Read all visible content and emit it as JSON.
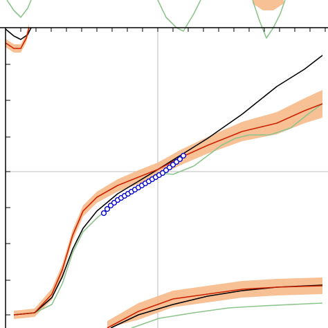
{
  "chart_data": {
    "type": "line",
    "xlim": [
      0,
      474
    ],
    "ylim": [
      0,
      474
    ],
    "xticks": [
      30,
      52,
      74,
      96,
      118,
      140,
      162,
      184,
      206,
      228,
      250,
      272,
      294,
      316,
      338,
      360,
      382,
      404,
      426,
      448,
      470
    ],
    "yticks": [
      19,
      69,
      122,
      174,
      226,
      276,
      329,
      381
    ],
    "grid_x": [
      228
    ],
    "grid_y": [
      226
    ],
    "series": [
      {
        "kind": "band",
        "color": "#f6b98a",
        "x": [
          20,
          50,
          75,
          90,
          105,
          120,
          140,
          170,
          200,
          228,
          260,
          300,
          350,
          400,
          440,
          466
        ],
        "lower": [
          13,
          16,
          41,
          76,
          126,
          161,
          181,
          197,
          208,
          219,
          235,
          252,
          270,
          280,
          296,
          304
        ],
        "upper": [
          25,
          28,
          57,
          92,
          142,
          177,
          197,
          215,
          228,
          239,
          257,
          276,
          298,
          312,
          332,
          344
        ]
      },
      {
        "kind": "band",
        "color": "#f6b98a",
        "x": [
          8,
          20,
          30,
          38,
          42
        ],
        "lower": [
          406,
          398,
          398,
          413,
          428
        ],
        "upper": [
          418,
          410,
          410,
          425,
          440
        ]
      },
      {
        "kind": "band",
        "color": "#f6b98a",
        "x": [
          155,
          200,
          250,
          300,
          350,
          400,
          466
        ],
        "lower": [
          0,
          12,
          30,
          37,
          44,
          47,
          49
        ],
        "upper": [
          10,
          36,
          54,
          61,
          68,
          71,
          73
        ]
      },
      {
        "kind": "band",
        "color": "#f6b98a",
        "x": [
          365,
          380,
          395,
          410
        ],
        "lower": [
          469,
          459,
          459,
          469
        ],
        "upper": [
          474,
          474,
          474,
          474
        ]
      },
      {
        "kind": "line",
        "color": "#8cc48c",
        "x": [
          20,
          50,
          75,
          90,
          105,
          120,
          140,
          170,
          200,
          228,
          250,
          280,
          320,
          340,
          360,
          390,
          420,
          445,
          466
        ],
        "values": [
          19,
          22,
          34,
          64,
          109,
          139,
          159,
          184,
          204,
          224,
          222,
          234,
          264,
          274,
          279,
          279,
          289,
          309,
          324
        ]
      },
      {
        "kind": "line",
        "color": "#8cc48c",
        "x": [
          190,
          230,
          280,
          330,
          380,
          466
        ],
        "values": [
          0,
          14,
          22,
          29,
          32,
          36
        ]
      },
      {
        "kind": "line",
        "color": "#8cc48c",
        "x": [
          10,
          20,
          30,
          40,
          45
        ],
        "values": [
          474,
          459,
          449,
          462,
          474
        ]
      },
      {
        "kind": "line",
        "color": "#8cc48c",
        "x": [
          228,
          240,
          255,
          265,
          280,
          290
        ],
        "values": [
          474,
          449,
          434,
          429,
          454,
          474
        ]
      },
      {
        "kind": "line",
        "color": "#8cc48c",
        "x": [
          365,
          375,
          385,
          395,
          405,
          412
        ],
        "values": [
          474,
          444,
          419,
          434,
          454,
          474
        ]
      },
      {
        "kind": "line",
        "color": "#000000",
        "x": [
          20,
          50,
          75,
          90,
          105,
          120,
          140,
          170,
          200,
          228,
          260,
          300,
          350,
          400,
          440,
          466
        ],
        "values": [
          19,
          22,
          44,
          74,
          114,
          144,
          169,
          194,
          212,
          229,
          249,
          274,
          309,
          349,
          374,
          394
        ]
      },
      {
        "kind": "line",
        "color": "#000000",
        "x": [
          8,
          20,
          30,
          40,
          45
        ],
        "values": [
          432,
          422,
          417,
          424,
          434
        ]
      },
      {
        "kind": "line",
        "color": "#000000",
        "x": [
          160,
          200,
          250,
          300,
          350,
          400,
          466
        ],
        "values": [
          0,
          19,
          34,
          46,
          54,
          59,
          62
        ]
      },
      {
        "kind": "line",
        "color": "#cc2200",
        "x": [
          20,
          50,
          75,
          90,
          105,
          120,
          140,
          170,
          200,
          228,
          260,
          300,
          350,
          400,
          440,
          466
        ],
        "values": [
          19,
          22,
          49,
          84,
          134,
          169,
          189,
          206,
          218,
          229,
          246,
          264,
          284,
          296,
          314,
          324
        ]
      },
      {
        "kind": "line",
        "color": "#cc2200",
        "x": [
          8,
          20,
          30,
          38,
          42
        ],
        "values": [
          412,
          404,
          404,
          419,
          434
        ]
      },
      {
        "kind": "line",
        "color": "#cc2200",
        "x": [
          155,
          200,
          250,
          300,
          350,
          400,
          466
        ],
        "values": [
          0,
          24,
          42,
          49,
          56,
          59,
          61
        ]
      },
      {
        "kind": "scatter",
        "color": "#0000cc",
        "x": [
          150,
          155,
          160,
          165,
          170,
          175,
          180,
          185,
          190,
          195,
          200,
          205,
          210,
          215,
          220,
          225,
          230,
          235,
          240,
          245,
          250,
          255,
          260,
          265
        ],
        "values": [
          166,
          172,
          177,
          181,
          185,
          188,
          191,
          194,
          197,
          200,
          203,
          206,
          209,
          212,
          215,
          218,
          221,
          224,
          228,
          232,
          236,
          240,
          244,
          249
        ]
      }
    ]
  }
}
